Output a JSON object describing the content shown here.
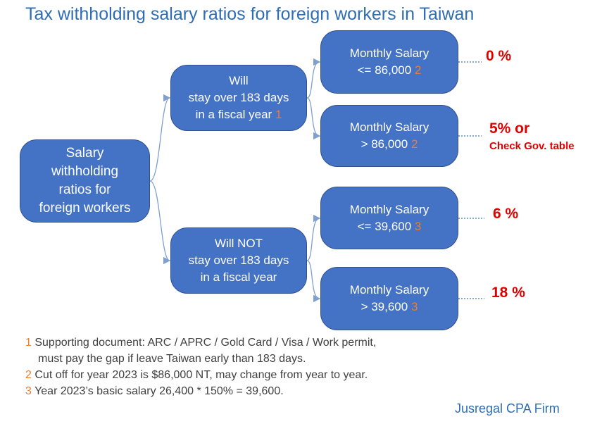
{
  "title": "Tax withholding salary ratios for foreign workers in Taiwan",
  "nodes": [
    {
      "lines": [
        "Salary",
        "withholding",
        "ratios for",
        "foreign workers"
      ]
    },
    {
      "lines": [
        "Will",
        "stay over 183 days",
        "in a fiscal year"
      ],
      "ref": "1"
    },
    {
      "lines": [
        "Will NOT",
        "stay over 183 days",
        "in a fiscal year"
      ]
    },
    {
      "lines": [
        "Monthly Salary",
        "<= 86,000"
      ],
      "ref": "2"
    },
    {
      "lines": [
        "Monthly Salary",
        "> 86,000"
      ],
      "ref": "2"
    },
    {
      "lines": [
        "Monthly Salary",
        "<= 39,600"
      ],
      "ref": "3"
    },
    {
      "lines": [
        "Monthly Salary",
        "> 39,600"
      ],
      "ref": "3"
    }
  ],
  "results": [
    {
      "lines": [
        "0 %"
      ]
    },
    {
      "lines": [
        "5% or",
        "Check Gov. table"
      ]
    },
    {
      "lines": [
        "6 %"
      ]
    },
    {
      "lines": [
        "18 %"
      ]
    }
  ],
  "notes": [
    {
      "ref": "1",
      "lines": [
        "Supporting document: ARC / APRC / Gold Card / Visa / Work permit,",
        "must pay the gap if leave Taiwan early than 183 days."
      ]
    },
    {
      "ref": "2",
      "lines": [
        "Cut off for year 2023 is $86,000 NT, may change from year to year."
      ]
    },
    {
      "ref": "3",
      "lines": [
        "Year 2023’s basic salary 26,400 * 150% = 39,600."
      ]
    }
  ],
  "footer": "Jusregal CPA Firm"
}
